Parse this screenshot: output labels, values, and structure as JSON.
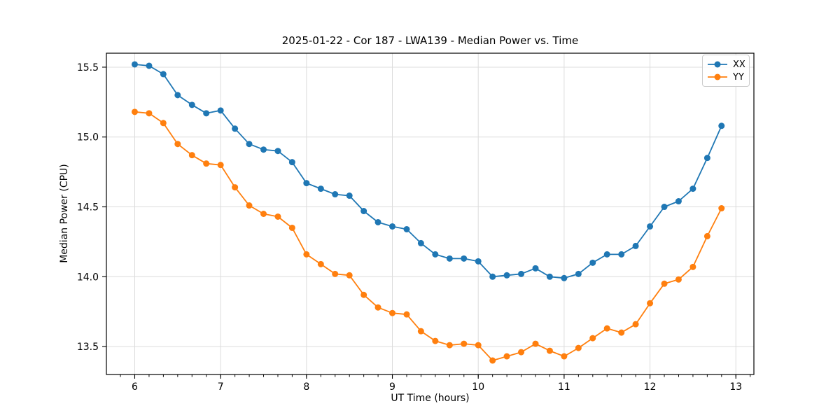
{
  "chart_data": {
    "type": "line",
    "title": "2025-01-22 - Cor 187 - LWA139 - Median Power vs. Time",
    "xlabel": "UT Time (hours)",
    "ylabel": "Median Power (CPU)",
    "xlim": [
      5.67,
      13.21
    ],
    "ylim": [
      13.3,
      15.6
    ],
    "xticks": [
      6,
      7,
      8,
      9,
      10,
      11,
      12,
      13
    ],
    "yticks": [
      13.5,
      14.0,
      14.5,
      15.0,
      15.5
    ],
    "minor_tick_step_x": 0.16667,
    "grid": true,
    "legend_position": "upper right",
    "x": [
      6.0,
      6.167,
      6.333,
      6.5,
      6.667,
      6.833,
      7.0,
      7.167,
      7.333,
      7.5,
      7.667,
      7.833,
      8.0,
      8.167,
      8.333,
      8.5,
      8.667,
      8.833,
      9.0,
      9.167,
      9.333,
      9.5,
      9.667,
      9.833,
      10.0,
      10.167,
      10.333,
      10.5,
      10.667,
      10.833,
      11.0,
      11.167,
      11.333,
      11.5,
      11.667,
      11.833,
      12.0,
      12.167,
      12.333,
      12.5,
      12.667,
      12.833
    ],
    "series": [
      {
        "name": "XX",
        "color": "#1f77b4",
        "values": [
          15.52,
          15.51,
          15.45,
          15.3,
          15.23,
          15.17,
          15.19,
          15.06,
          14.95,
          14.91,
          14.9,
          14.82,
          14.67,
          14.63,
          14.59,
          14.58,
          14.47,
          14.39,
          14.36,
          14.34,
          14.24,
          14.16,
          14.13,
          14.13,
          14.11,
          14.0,
          14.01,
          14.02,
          14.06,
          14.0,
          13.99,
          14.02,
          14.1,
          14.16,
          14.16,
          14.22,
          14.36,
          14.5,
          14.54,
          14.63,
          14.85,
          15.08
        ]
      },
      {
        "name": "YY",
        "color": "#ff7f0e",
        "values": [
          15.18,
          15.17,
          15.1,
          14.95,
          14.87,
          14.81,
          14.8,
          14.64,
          14.51,
          14.45,
          14.43,
          14.35,
          14.16,
          14.09,
          14.02,
          14.01,
          13.87,
          13.78,
          13.74,
          13.73,
          13.61,
          13.54,
          13.51,
          13.52,
          13.51,
          13.4,
          13.43,
          13.46,
          13.52,
          13.47,
          13.43,
          13.49,
          13.56,
          13.63,
          13.6,
          13.66,
          13.81,
          13.95,
          13.98,
          14.07,
          14.29,
          14.49
        ]
      }
    ],
    "colors": {
      "grid": "#dcdcdc",
      "spine": "#000000",
      "background": "#ffffff"
    }
  }
}
